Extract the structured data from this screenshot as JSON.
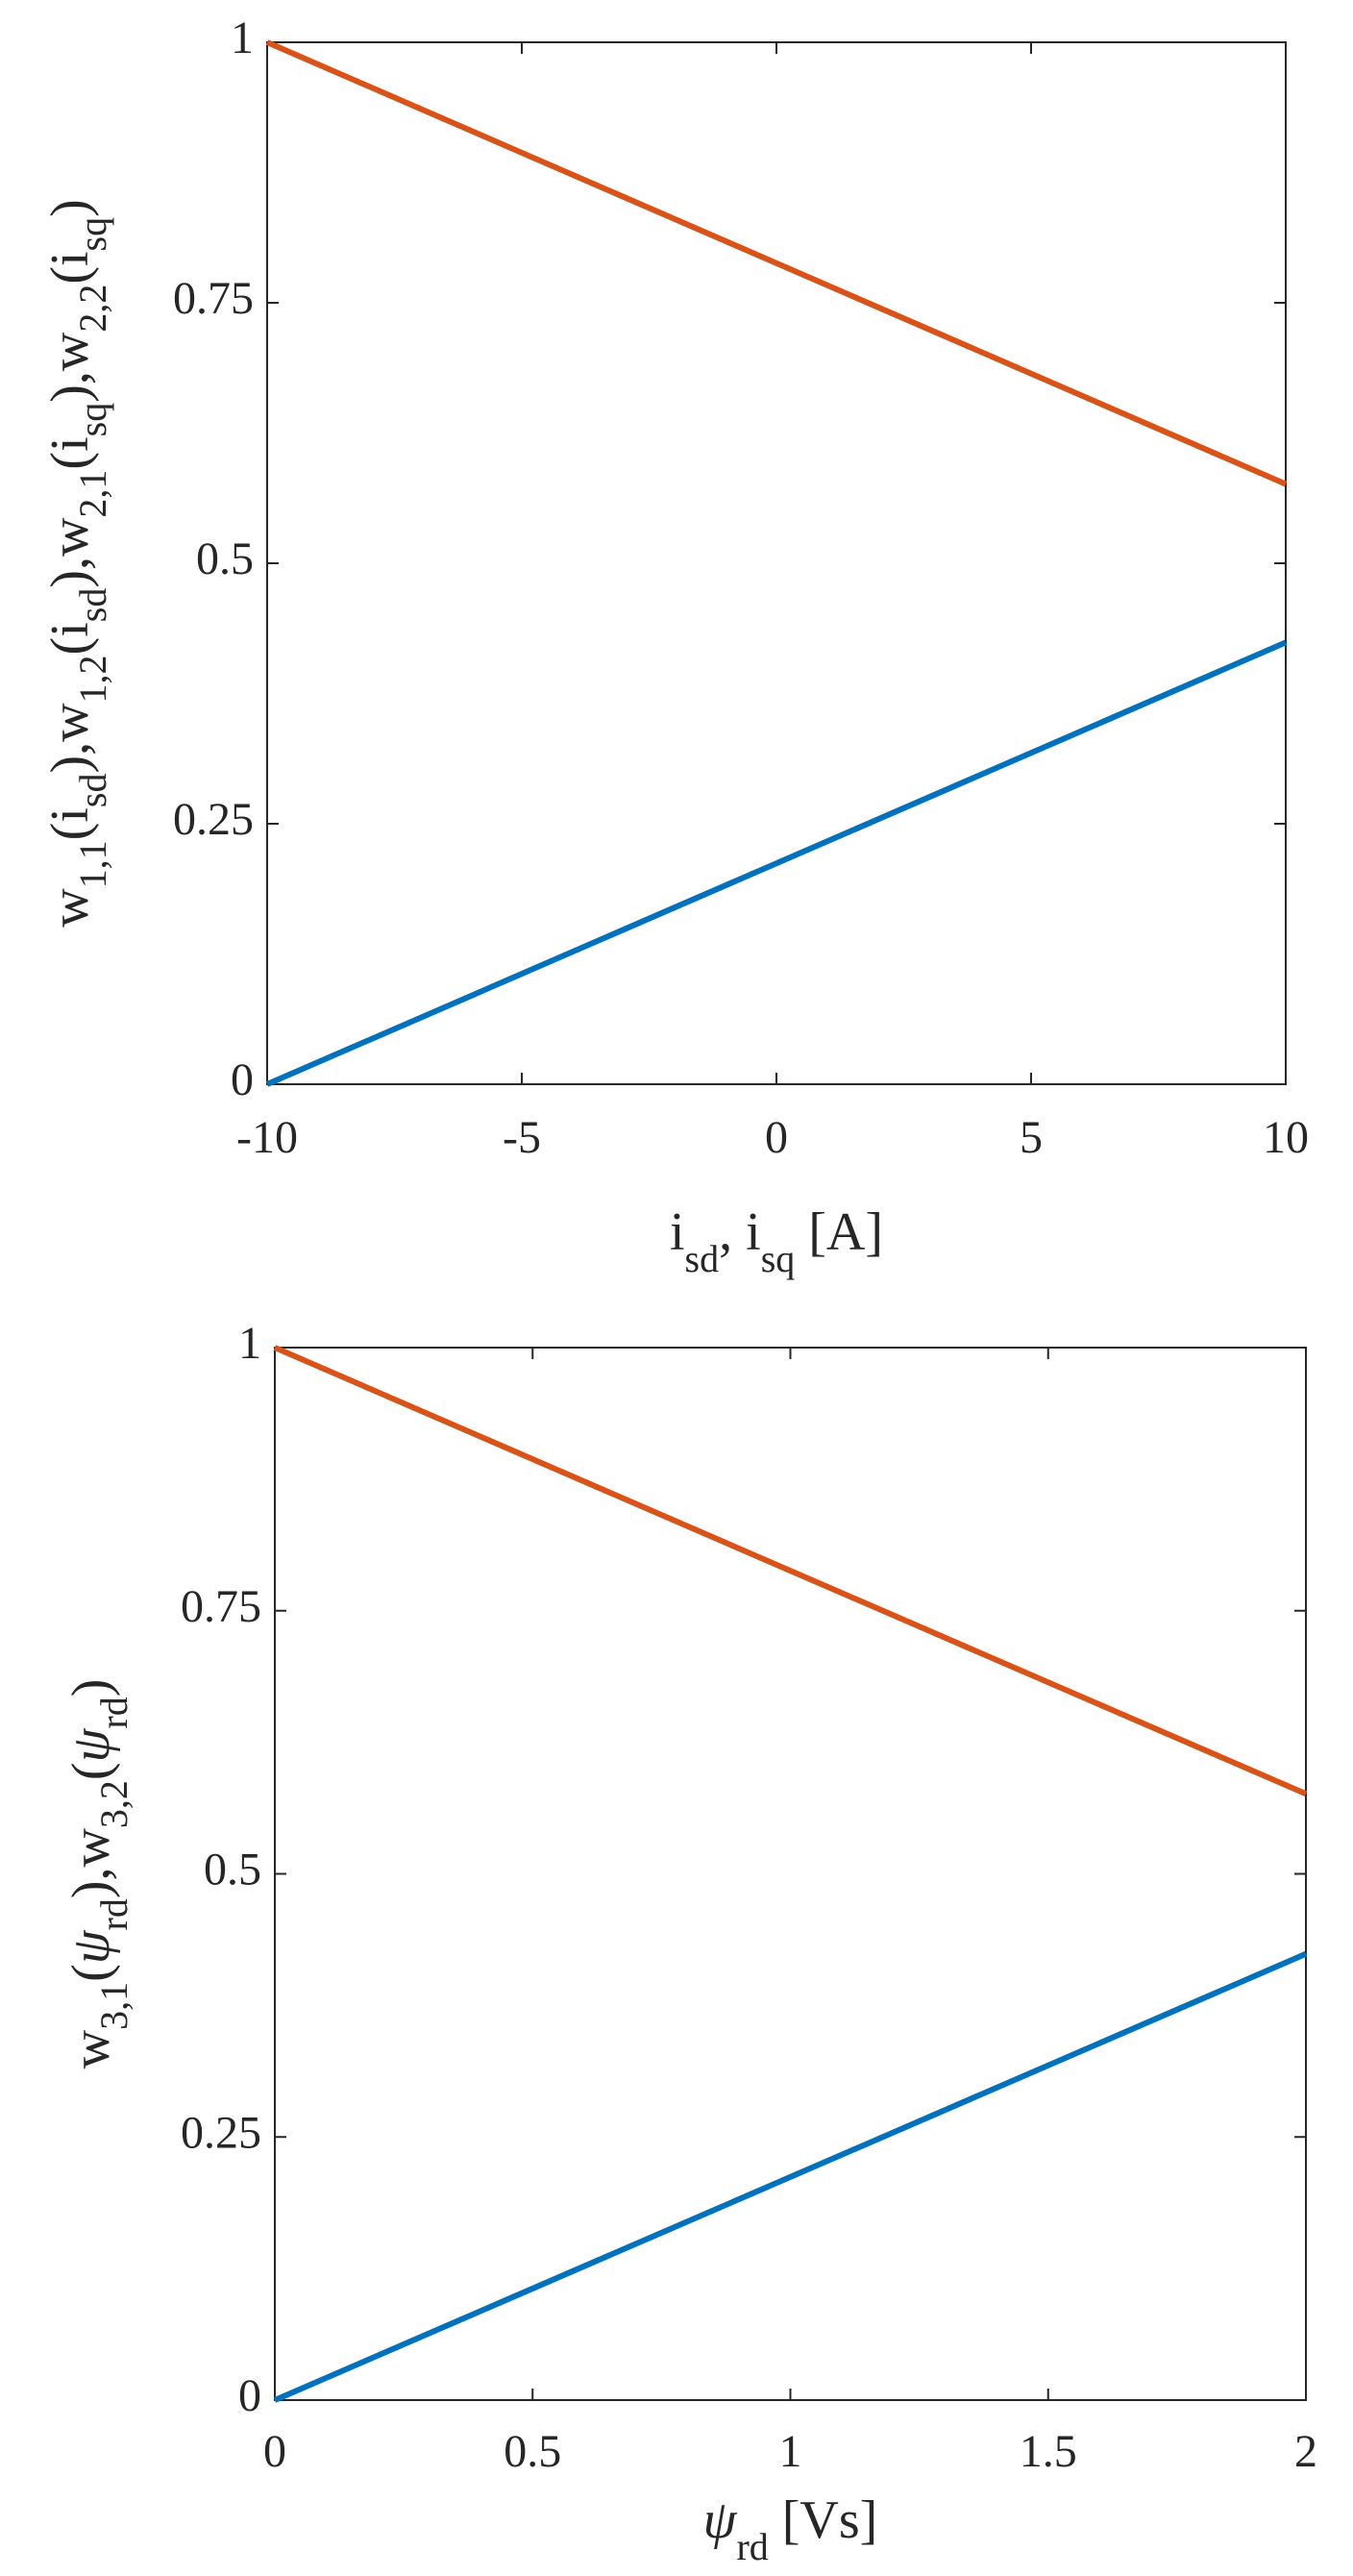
{
  "chart_data": [
    {
      "type": "line",
      "xlabel": [
        {
          "text": "i"
        },
        {
          "text": "sd",
          "sub": true
        },
        {
          "text": ", i"
        },
        {
          "text": "sq",
          "sub": true
        },
        {
          "text": " [A]"
        }
      ],
      "ylabel": [
        {
          "text": "w"
        },
        {
          "text": "1,1",
          "sub": true
        },
        {
          "text": "(i"
        },
        {
          "text": "sd",
          "sub": true
        },
        {
          "text": "),w"
        },
        {
          "text": "1,2",
          "sub": true
        },
        {
          "text": "(i"
        },
        {
          "text": "sd",
          "sub": true
        },
        {
          "text": "),w"
        },
        {
          "text": "2,1",
          "sub": true
        },
        {
          "text": "(i"
        },
        {
          "text": "sq",
          "sub": true
        },
        {
          "text": "),w"
        },
        {
          "text": "2,2",
          "sub": true
        },
        {
          "text": "(i"
        },
        {
          "text": "sq",
          "sub": true
        },
        {
          "text": ")"
        }
      ],
      "x": [
        -10,
        10
      ],
      "series": [
        {
          "color": "#d95319",
          "values": [
            1,
            0.576
          ]
        },
        {
          "color": "#0072bd",
          "values": [
            0,
            0.424
          ]
        }
      ],
      "xlim": [
        -10,
        10
      ],
      "xticks": [
        -10,
        -5,
        0,
        5,
        10
      ],
      "ylim": [
        0,
        1
      ],
      "yticks": [
        0,
        0.25,
        0.5,
        0.75,
        1
      ]
    },
    {
      "type": "line",
      "xlabel": [
        {
          "text": "ψ",
          "italic": true
        },
        {
          "text": "rd",
          "sub": true
        },
        {
          "text": " [Vs]"
        }
      ],
      "ylabel": [
        {
          "text": "w"
        },
        {
          "text": "3,1",
          "sub": true
        },
        {
          "text": "("
        },
        {
          "text": "ψ",
          "italic": true
        },
        {
          "text": "rd",
          "sub": true
        },
        {
          "text": "),w"
        },
        {
          "text": "3,2",
          "sub": true
        },
        {
          "text": "("
        },
        {
          "text": "ψ",
          "italic": true
        },
        {
          "text": "rd",
          "sub": true
        },
        {
          "text": ")"
        }
      ],
      "x": [
        0,
        2
      ],
      "series": [
        {
          "color": "#d95319",
          "values": [
            1,
            0.576
          ]
        },
        {
          "color": "#0072bd",
          "values": [
            0,
            0.424
          ]
        }
      ],
      "xlim": [
        0,
        2
      ],
      "xticks": [
        0,
        0.5,
        1,
        1.5,
        2
      ],
      "ylim": [
        0,
        1
      ],
      "yticks": [
        0,
        0.25,
        0.5,
        0.75,
        1
      ]
    }
  ]
}
